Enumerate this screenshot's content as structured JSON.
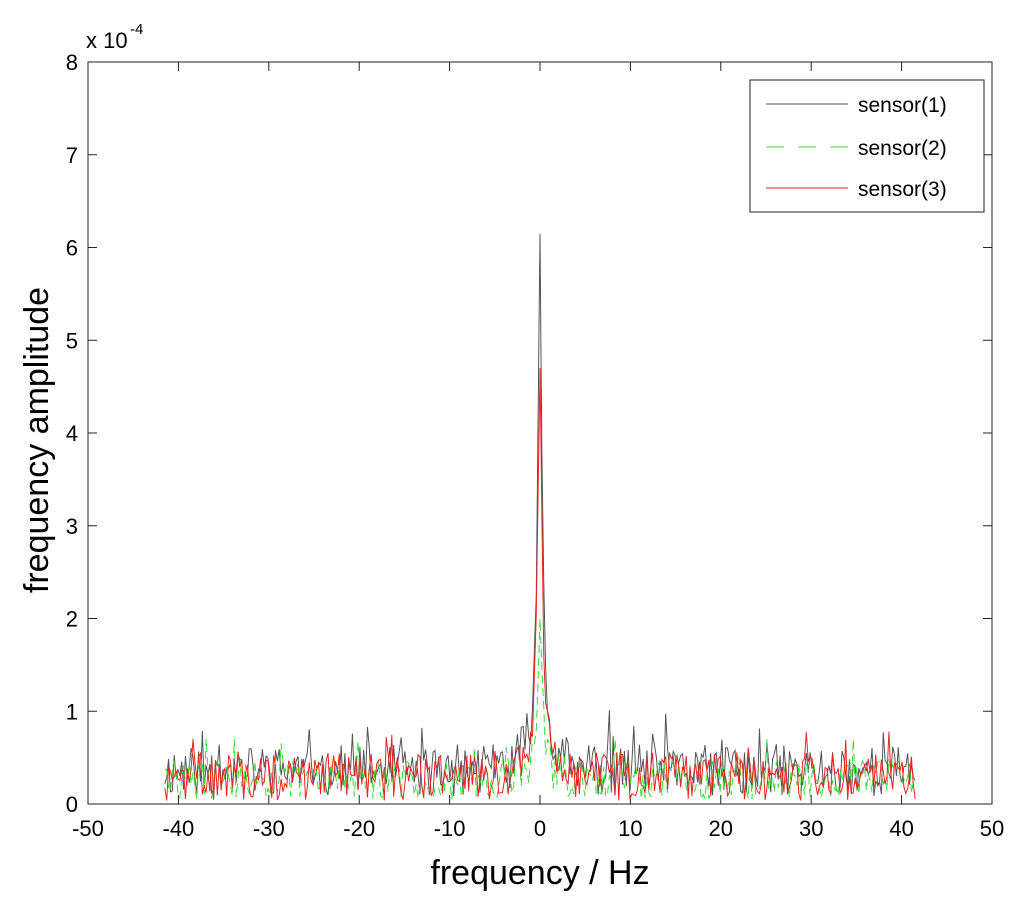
{
  "chart_data": {
    "type": "line",
    "xlabel": "frequency / Hz",
    "ylabel": "frequency amplitude",
    "y_scale_label": "x 10",
    "y_scale_exponent": "-4",
    "xlim": [
      -50,
      50
    ],
    "ylim": [
      0,
      8
    ],
    "xticks": [
      -50,
      -40,
      -30,
      -20,
      -10,
      0,
      10,
      20,
      30,
      40,
      50
    ],
    "yticks": [
      0,
      1,
      2,
      3,
      4,
      5,
      6,
      7,
      8
    ],
    "grid": false,
    "legend_position": "top-right",
    "x_range_data": [
      -41.5,
      41.5
    ],
    "series": [
      {
        "name": "sensor(1)",
        "color": "#555555",
        "style": "solid",
        "peak_x": 0,
        "peak_value": 6.15,
        "noise_base": 0.28,
        "noise_amp": 0.28,
        "seed": 11
      },
      {
        "name": "sensor(2)",
        "color": "#33dd33",
        "style": "dashed",
        "peak_x": 0,
        "peak_value": 2.0,
        "noise_base": 0.2,
        "noise_amp": 0.22,
        "seed": 29
      },
      {
        "name": "sensor(3)",
        "color": "#ee2222",
        "style": "solid",
        "peak_x": 0,
        "peak_value": 4.7,
        "noise_base": 0.22,
        "noise_amp": 0.26,
        "seed": 47
      }
    ]
  }
}
